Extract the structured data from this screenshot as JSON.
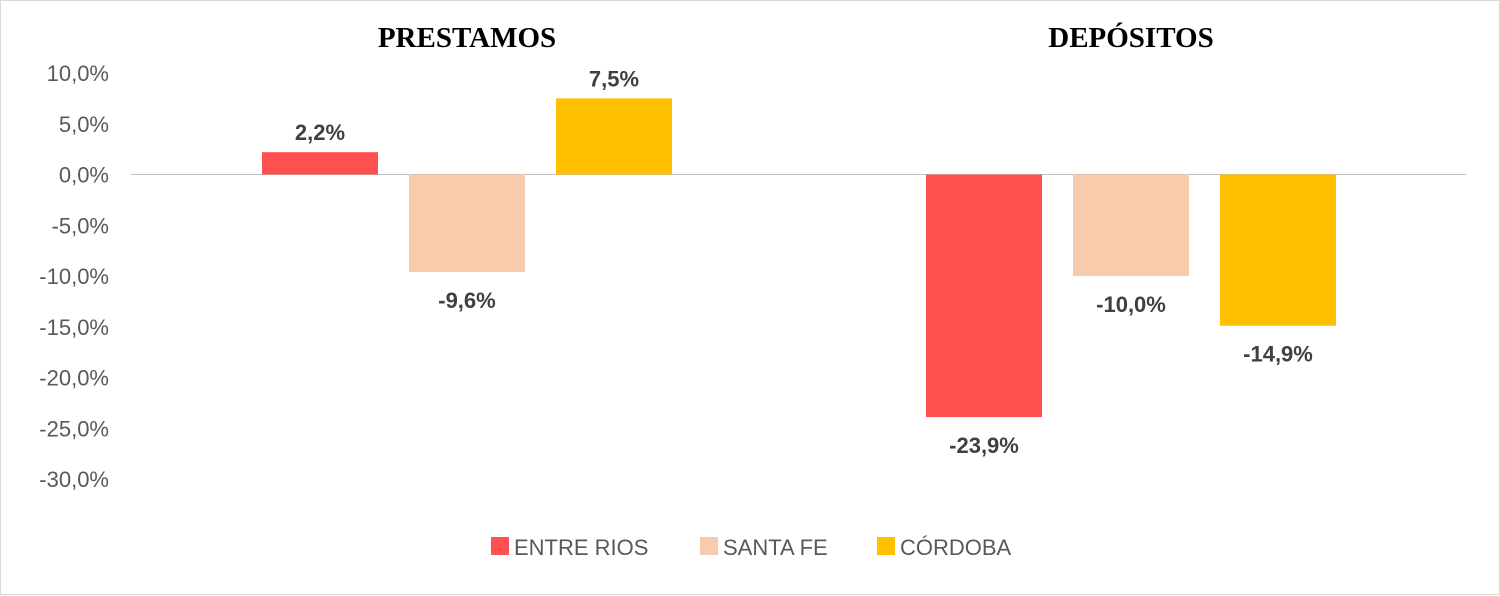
{
  "chart_data": {
    "type": "bar",
    "panels": [
      "PRESTAMOS",
      "DEPÓSITOS"
    ],
    "series": [
      {
        "name": "ENTRE RIOS",
        "color": "#ff5050",
        "values": [
          2.2,
          -23.9
        ],
        "labels": [
          "2,2%",
          "-23,9%"
        ]
      },
      {
        "name": "SANTA FE",
        "color": "#f8cbad",
        "values": [
          -9.6,
          -10.0
        ],
        "labels": [
          "-9,6%",
          "-10,0%"
        ]
      },
      {
        "name": "CÓRDOBA",
        "color": "#ffc000",
        "values": [
          7.5,
          -14.9
        ],
        "labels": [
          "7,5%",
          "-14,9%"
        ]
      }
    ],
    "yticks": [
      10,
      5,
      0,
      -5,
      -10,
      -15,
      -20,
      -25,
      -30
    ],
    "ytick_labels": [
      "10,0%",
      "5,0%",
      "0,0%",
      "-5,0%",
      "-10,0%",
      "-15,0%",
      "-20,0%",
      "-25,0%",
      "-30,0%"
    ],
    "ylim": [
      -30,
      10
    ],
    "grid": false,
    "legend_position": "bottom"
  }
}
